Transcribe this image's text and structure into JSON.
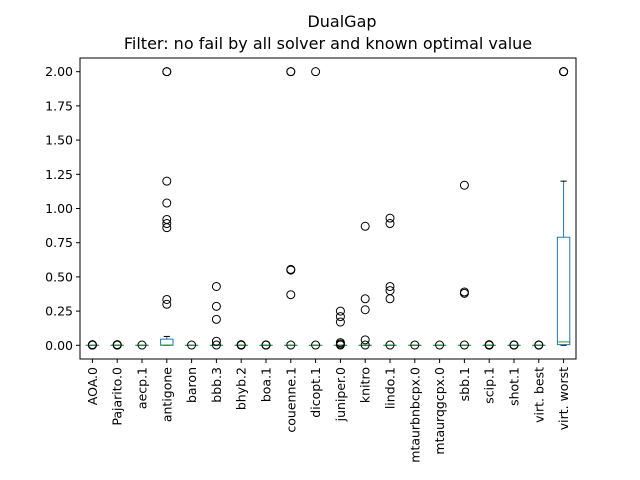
{
  "chart_data": {
    "type": "box",
    "title": "DualGap",
    "subtitle": "Filter: no fail by all solver and known optimal value",
    "xlabel": "",
    "ylabel": "",
    "ylim": [
      -0.1,
      2.1
    ],
    "yticks": [
      "0.00",
      "0.25",
      "0.50",
      "0.75",
      "1.00",
      "1.25",
      "1.50",
      "1.75",
      "2.00"
    ],
    "grid": false,
    "legend": "none",
    "colors": {
      "box": "#1f77b4",
      "median": "#2ca02c",
      "flier": "#000000",
      "axis": "#000000"
    },
    "categories": [
      "AOA.0",
      "Pajarito.0",
      "aecp.1",
      "antigone",
      "baron",
      "bbb.3",
      "bhyb.2",
      "boa.1",
      "couenne.1",
      "dicopt.1",
      "juniper.0",
      "knitro",
      "lindo.1",
      "mtaurbnbcpx.0",
      "mtaurqgcpx.0",
      "sbb.1",
      "scip.1",
      "shot.1",
      "virt. best",
      "virt. worst"
    ],
    "boxes": [
      {
        "q1": 0,
        "median": 0,
        "q3": 0,
        "whisker_low": 0,
        "whisker_high": 0,
        "fliers": [
          0.001,
          0.003,
          0.005
        ]
      },
      {
        "q1": 0,
        "median": 0,
        "q3": 0,
        "whisker_low": 0,
        "whisker_high": 0,
        "fliers": [
          0.001,
          0.003,
          0.005
        ]
      },
      {
        "q1": 0,
        "median": 0,
        "q3": 0,
        "whisker_low": 0,
        "whisker_high": 0,
        "fliers": [
          0.002
        ]
      },
      {
        "q1": 0,
        "median": 0.002,
        "q3": 0.045,
        "whisker_low": 0,
        "whisker_high": 0.065,
        "fliers": [
          0.3,
          0.335,
          0.86,
          0.89,
          0.92,
          1.04,
          1.2,
          2.0,
          2.0
        ]
      },
      {
        "q1": 0,
        "median": 0,
        "q3": 0,
        "whisker_low": 0,
        "whisker_high": 0,
        "fliers": [
          0.002
        ]
      },
      {
        "q1": 0,
        "median": 0,
        "q3": 0,
        "whisker_low": 0,
        "whisker_high": 0,
        "fliers": [
          0.002,
          0.03,
          0.19,
          0.285,
          0.43
        ]
      },
      {
        "q1": 0,
        "median": 0,
        "q3": 0,
        "whisker_low": 0,
        "whisker_high": 0,
        "fliers": [
          0.001,
          0.003,
          0.005
        ]
      },
      {
        "q1": 0,
        "median": 0,
        "q3": 0,
        "whisker_low": 0,
        "whisker_high": 0,
        "fliers": [
          0.001,
          0.003
        ]
      },
      {
        "q1": 0,
        "median": 0,
        "q3": 0,
        "whisker_low": 0,
        "whisker_high": 0,
        "fliers": [
          0.002,
          0.37,
          0.55,
          0.555,
          2.0,
          2.0
        ]
      },
      {
        "q1": 0,
        "median": 0,
        "q3": 0,
        "whisker_low": 0,
        "whisker_high": 0,
        "fliers": [
          0.002,
          2.0
        ]
      },
      {
        "q1": 0,
        "median": 0,
        "q3": 0,
        "whisker_low": 0,
        "whisker_high": 0,
        "fliers": [
          0.002,
          0.01,
          0.02,
          0.17,
          0.21,
          0.25
        ]
      },
      {
        "q1": 0,
        "median": 0,
        "q3": 0,
        "whisker_low": 0,
        "whisker_high": 0,
        "fliers": [
          0.002,
          0.04,
          0.26,
          0.34,
          0.87
        ]
      },
      {
        "q1": 0,
        "median": 0,
        "q3": 0,
        "whisker_low": 0,
        "whisker_high": 0,
        "fliers": [
          0.002,
          0.34,
          0.4,
          0.43,
          0.89,
          0.93
        ]
      },
      {
        "q1": 0,
        "median": 0,
        "q3": 0,
        "whisker_low": 0,
        "whisker_high": 0,
        "fliers": [
          0.002
        ]
      },
      {
        "q1": 0,
        "median": 0,
        "q3": 0,
        "whisker_low": 0,
        "whisker_high": 0,
        "fliers": [
          0.002
        ]
      },
      {
        "q1": 0,
        "median": 0,
        "q3": 0,
        "whisker_low": 0,
        "whisker_high": 0,
        "fliers": [
          0.002,
          0.38,
          0.39,
          1.17
        ]
      },
      {
        "q1": 0,
        "median": 0,
        "q3": 0,
        "whisker_low": 0,
        "whisker_high": 0,
        "fliers": [
          0.001,
          0.003,
          0.005
        ]
      },
      {
        "q1": 0,
        "median": 0,
        "q3": 0,
        "whisker_low": 0,
        "whisker_high": 0,
        "fliers": [
          0.001,
          0.003
        ]
      },
      {
        "q1": 0,
        "median": 0,
        "q3": 0,
        "whisker_low": 0,
        "whisker_high": 0,
        "fliers": [
          0.001,
          0.003
        ]
      },
      {
        "q1": 0.005,
        "median": 0.025,
        "q3": 0.79,
        "whisker_low": 0,
        "whisker_high": 1.2,
        "fliers": [
          2.0,
          2.0,
          2.0
        ]
      }
    ]
  }
}
